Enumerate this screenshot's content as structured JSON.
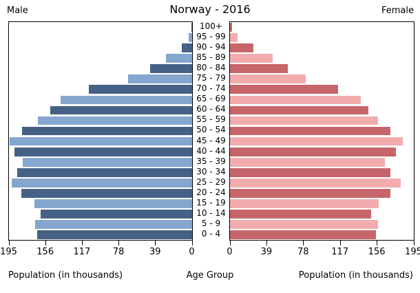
{
  "header": {
    "male_label": "Male",
    "title": "Norway - 2016",
    "female_label": "Female"
  },
  "axis": {
    "left_ticks": [
      195,
      156,
      117,
      78,
      39,
      0
    ],
    "right_ticks": [
      0,
      39,
      78,
      117,
      156,
      195
    ],
    "max": 195,
    "left_axis_label": "Population (in thousands)",
    "center_axis_label": "Age Group",
    "right_axis_label": "Population (in thousands)"
  },
  "colors": {
    "male_dark": "#456185",
    "male_light": "#85a6ce",
    "female_dark": "#c6666a",
    "female_light": "#f2acae",
    "axis": "#000000",
    "background": "#ffffff"
  },
  "chart_data": {
    "type": "bar",
    "variant": "population-pyramid",
    "title": "Norway - 2016",
    "categories": [
      "100+",
      "95 - 99",
      "90 - 94",
      "85 - 89",
      "80 - 84",
      "75 - 79",
      "70 - 74",
      "65 - 69",
      "60 - 64",
      "55 - 59",
      "50 - 54",
      "45 - 49",
      "40 - 44",
      "35 - 39",
      "30 - 34",
      "25 - 29",
      "20 - 24",
      "15 - 19",
      "10 - 14",
      "5 - 9",
      "0 - 4"
    ],
    "series": [
      {
        "name": "Male",
        "values": [
          1,
          4,
          11,
          28,
          45,
          68,
          110,
          140,
          151,
          164,
          181,
          194,
          189,
          180,
          186,
          192,
          182,
          168,
          161,
          167,
          165
        ]
      },
      {
        "name": "Female",
        "values": [
          2,
          8,
          25,
          45,
          61,
          80,
          115,
          139,
          147,
          157,
          170,
          183,
          176,
          164,
          170,
          181,
          170,
          158,
          150,
          157,
          155
        ]
      }
    ],
    "xlabel": "Population (in thousands)",
    "ylabel": "Age Group",
    "xlim": [
      0,
      195
    ],
    "legend": "none",
    "grid": false
  }
}
